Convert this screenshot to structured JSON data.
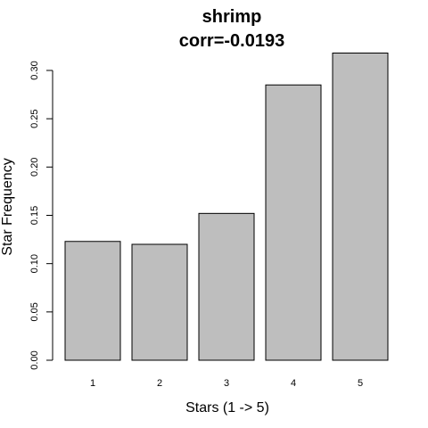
{
  "chart_data": {
    "type": "bar",
    "title": "shrimp",
    "subtitle": "corr=-0.0193",
    "xlabel": "Stars (1 -> 5)",
    "ylabel": "Star Frequency",
    "categories": [
      "1",
      "2",
      "3",
      "4",
      "5"
    ],
    "values": [
      0.123,
      0.12,
      0.152,
      0.285,
      0.318
    ],
    "yticks": [
      "0.00",
      "0.05",
      "0.10",
      "0.15",
      "0.20",
      "0.25",
      "0.30"
    ],
    "ylim": [
      0,
      0.3
    ],
    "grid": false,
    "legend": "none",
    "colors": {
      "bar_fill": "#bebebe",
      "bar_stroke": "#000000"
    }
  }
}
